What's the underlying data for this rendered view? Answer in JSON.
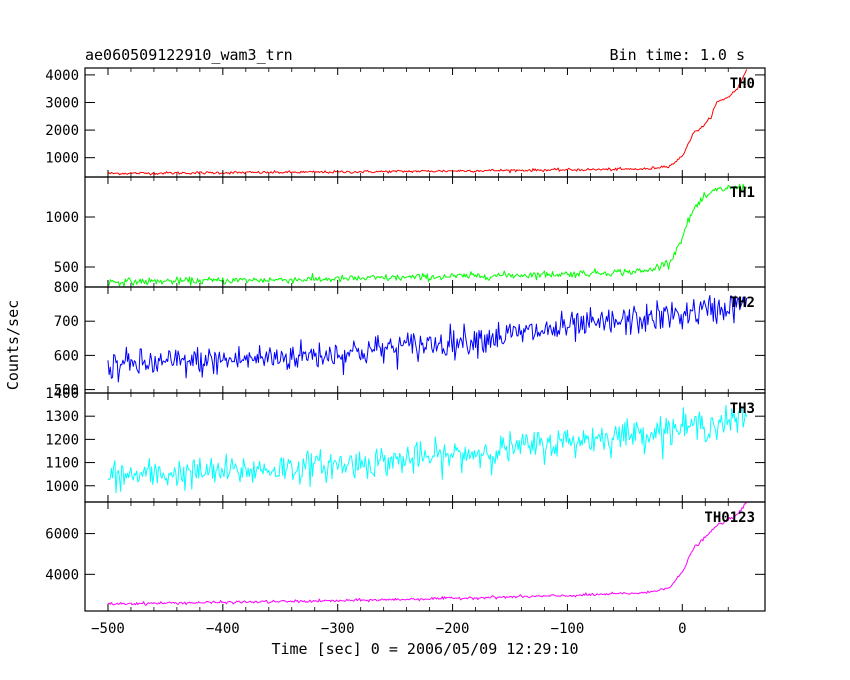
{
  "header": {
    "title": "ae060509122910_wam3_trn",
    "bin_time": "Bin time: 1.0 s"
  },
  "chart_data": {
    "type": "line",
    "xlabel": "Time [sec] 0 = 2006/05/09 12:29:10",
    "ylabel": "Counts/sec",
    "xlim": [
      -520,
      72
    ],
    "xticks": [
      -500,
      -400,
      -300,
      -200,
      -100,
      0
    ],
    "xtick_labels": [
      "−500",
      "−400",
      "−300",
      "−200",
      "−100",
      "0"
    ],
    "x_range": [
      -500,
      56
    ],
    "bin_time_s": 1.0,
    "panels": [
      {
        "label": "TH0",
        "color": "#ff0000",
        "ylim": [
          300,
          4250
        ],
        "yticks": [
          1000,
          2000,
          3000,
          4000
        ],
        "ytick_labels": [
          "1000",
          "2000",
          "3000",
          "4000"
        ],
        "noise_sd": 25,
        "profile": [
          [
            -500,
            430
          ],
          [
            -300,
            480
          ],
          [
            -100,
            560
          ],
          [
            -30,
            590
          ],
          [
            -10,
            720
          ],
          [
            0,
            1050
          ],
          [
            5,
            1500
          ],
          [
            10,
            1900
          ],
          [
            20,
            2200
          ],
          [
            25,
            2500
          ],
          [
            30,
            3000
          ],
          [
            40,
            3200
          ],
          [
            48,
            3500
          ],
          [
            56,
            4200
          ]
        ]
      },
      {
        "label": "TH1",
        "color": "#00ff00",
        "ylim": [
          300,
          1400
        ],
        "yticks": [
          500,
          1000
        ],
        "ytick_labels": [
          "500",
          "1000"
        ],
        "noise_sd": 18,
        "profile": [
          [
            -500,
            350
          ],
          [
            -300,
            380
          ],
          [
            -100,
            430
          ],
          [
            -30,
            460
          ],
          [
            -10,
            560
          ],
          [
            0,
            800
          ],
          [
            5,
            950
          ],
          [
            10,
            1080
          ],
          [
            20,
            1200
          ],
          [
            30,
            1270
          ],
          [
            40,
            1290
          ],
          [
            56,
            1300
          ]
        ]
      },
      {
        "label": "TH2",
        "color": "#0000ff",
        "ylim": [
          490,
          800
        ],
        "yticks": [
          500,
          600,
          700,
          800
        ],
        "ytick_labels": [
          "500",
          "600",
          "700",
          "800"
        ],
        "noise_sd": 22,
        "profile": [
          [
            -500,
            570
          ],
          [
            -400,
            585
          ],
          [
            -300,
            605
          ],
          [
            -200,
            640
          ],
          [
            -100,
            680
          ],
          [
            0,
            720
          ],
          [
            56,
            750
          ]
        ]
      },
      {
        "label": "TH3",
        "color": "#00ffff",
        "ylim": [
          930,
          1400
        ],
        "yticks": [
          1000,
          1100,
          1200,
          1300,
          1400
        ],
        "ytick_labels": [
          "1000",
          "1100",
          "1200",
          "1300",
          "1400"
        ],
        "noise_sd": 33,
        "profile": [
          [
            -500,
            1040
          ],
          [
            -400,
            1060
          ],
          [
            -300,
            1090
          ],
          [
            -200,
            1130
          ],
          [
            -100,
            1190
          ],
          [
            0,
            1250
          ],
          [
            56,
            1285
          ]
        ]
      },
      {
        "label": "TH0123",
        "color": "#ff00ff",
        "ylim": [
          2200,
          7550
        ],
        "yticks": [
          4000,
          6000
        ],
        "ytick_labels": [
          "4000",
          "6000"
        ],
        "noise_sd": 35,
        "profile": [
          [
            -500,
            2550
          ],
          [
            -300,
            2700
          ],
          [
            -100,
            2950
          ],
          [
            -30,
            3100
          ],
          [
            -10,
            3400
          ],
          [
            0,
            4100
          ],
          [
            5,
            4700
          ],
          [
            10,
            5300
          ],
          [
            20,
            5800
          ],
          [
            30,
            6400
          ],
          [
            45,
            6800
          ],
          [
            56,
            7500
          ]
        ]
      }
    ]
  }
}
